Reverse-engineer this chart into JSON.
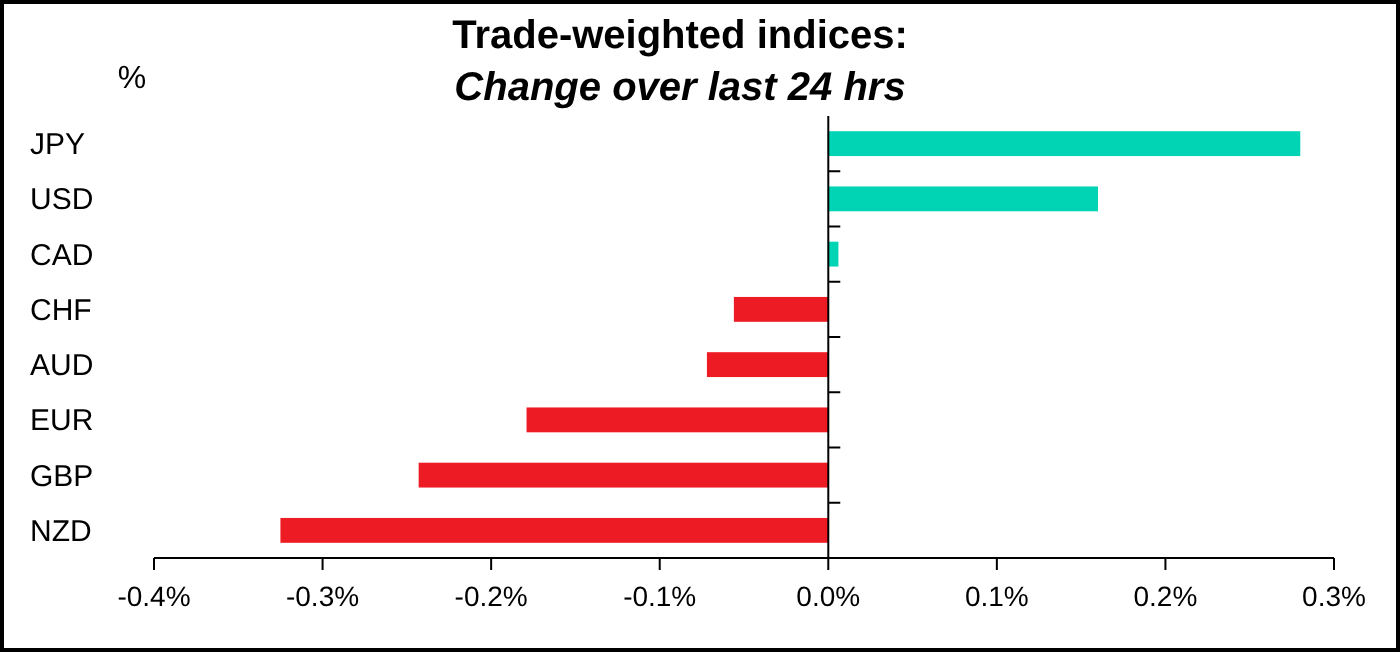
{
  "chart_data": {
    "type": "bar",
    "orientation": "horizontal",
    "title": "Trade-weighted indices:",
    "subtitle": "Change over last 24 hrs",
    "ylabel": "%",
    "categories": [
      "JPY",
      "USD",
      "CAD",
      "CHF",
      "AUD",
      "EUR",
      "GBP",
      "NZD"
    ],
    "values": [
      0.28,
      0.16,
      0.006,
      -0.056,
      -0.072,
      -0.179,
      -0.243,
      -0.325
    ],
    "colors": [
      "#00d4b4",
      "#00d4b4",
      "#00d4b4",
      "#ed1c24",
      "#ed1c24",
      "#ed1c24",
      "#ed1c24",
      "#ed1c24"
    ],
    "xlim": [
      -0.4,
      0.3
    ],
    "xticks": [
      {
        "value": -0.4,
        "label": "-0.4%"
      },
      {
        "value": -0.3,
        "label": "-0.3%"
      },
      {
        "value": -0.2,
        "label": "-0.2%"
      },
      {
        "value": -0.1,
        "label": "-0.1%"
      },
      {
        "value": 0,
        "label": "0.0%"
      },
      {
        "value": 0.1,
        "label": "0.1%"
      },
      {
        "value": 0.2,
        "label": "0.2%"
      },
      {
        "value": 0.3,
        "label": "0.3%"
      }
    ],
    "line_style": "solid"
  }
}
